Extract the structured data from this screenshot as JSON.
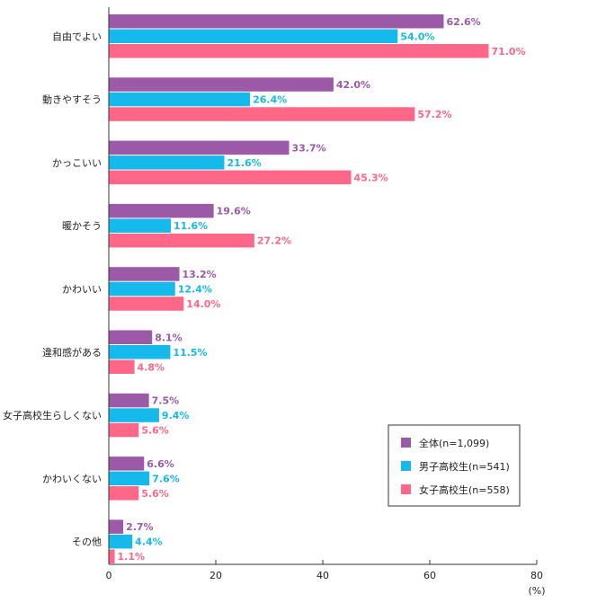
{
  "chart_data": {
    "type": "bar",
    "orientation": "horizontal",
    "categories": [
      "自由でよい",
      "動きやすそう",
      "かっこいい",
      "暖かそう",
      "かわいい",
      "違和感がある",
      "女子高校生らしくない",
      "かわいくない",
      "その他"
    ],
    "series": [
      {
        "name": "全体(n=1,099)",
        "color": "#9b59a8",
        "values": [
          62.6,
          42.0,
          33.7,
          19.6,
          13.2,
          8.1,
          7.5,
          6.6,
          2.7
        ],
        "labels": [
          "62.6%",
          "42.0%",
          "33.7%",
          "19.6%",
          "13.2%",
          "8.1%",
          "7.5%",
          "6.6%",
          "2.7%"
        ]
      },
      {
        "name": "男子高校生(n=541)",
        "color": "#16b9eb",
        "values": [
          54.0,
          26.4,
          21.6,
          11.6,
          12.4,
          11.5,
          9.4,
          7.6,
          4.4
        ],
        "labels": [
          "54.0%",
          "26.4%",
          "21.6%",
          "11.6%",
          "12.4%",
          "11.5%",
          "9.4%",
          "7.6%",
          "4.4%"
        ]
      },
      {
        "name": "女子高校生(n=558)",
        "color": "#fe6787",
        "values": [
          71.0,
          57.2,
          45.3,
          27.2,
          14.0,
          4.8,
          5.6,
          5.6,
          1.1
        ],
        "labels": [
          "71.0%",
          "57.2%",
          "45.3%",
          "27.2%",
          "14.0%",
          "4.8%",
          "5.6%",
          "5.6%",
          "1.1%"
        ]
      }
    ],
    "xlim": [
      0,
      80
    ],
    "ticks": [
      "0",
      "20",
      "40",
      "60",
      "80"
    ],
    "unit": "(%)",
    "legend_position": "bottom-right"
  }
}
